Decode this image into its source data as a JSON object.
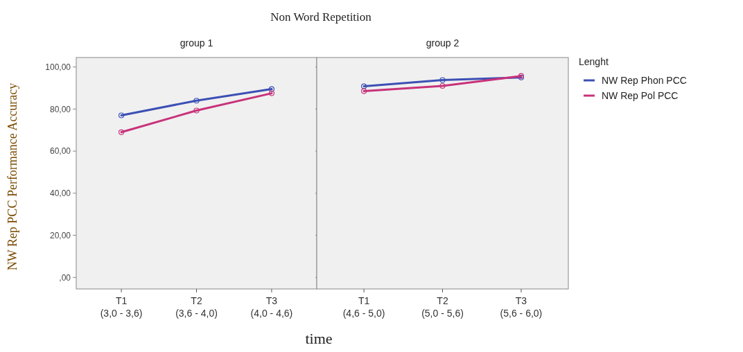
{
  "chart_data": [
    {
      "type": "line",
      "title": "Non Word Repetition",
      "subtitle": "group 1",
      "xlabel": "time",
      "ylabel": "NW Rep PCC Performance Accuracy",
      "categories": [
        "T1\n(3,0 - 3,6)",
        "T2\n(3,6 - 4,0)",
        "T3\n(4,0 - 4,6)"
      ],
      "series": [
        {
          "color": "#3c4fb4",
          "values": [
            77,
            84,
            89.5
          ]
        },
        {
          "color": "#c8327a",
          "values": [
            69,
            79.3,
            87.5
          ]
        }
      ],
      "ylim": [
        -5.5,
        104.5
      ],
      "yticks": [
        {
          "value": 0,
          "label": ",00"
        },
        {
          "value": 20,
          "label": "20,00"
        },
        {
          "value": 40,
          "label": "40,00"
        },
        {
          "value": 60,
          "label": "60,00"
        },
        {
          "value": 80,
          "label": "80,00"
        },
        {
          "value": 100,
          "label": "100,00"
        }
      ],
      "marker": "circle",
      "legend": false
    },
    {
      "type": "line",
      "subtitle": "group 2",
      "categories": [
        "T1\n(4,6 - 5,0)",
        "T2\n(5,0 - 5,6)",
        "T3\n(5,6 - 6,0)"
      ],
      "series": [
        {
          "name": "NW Rep Phon  PCC",
          "color": "#3c4fb4",
          "values": [
            90.8,
            93.8,
            95
          ]
        },
        {
          "name": "NW Rep Pol PCC",
          "color": "#c8327a",
          "values": [
            88.5,
            91,
            95.7
          ]
        }
      ],
      "ylim": [
        -5.5,
        104.5
      ],
      "yticks": [
        {
          "value": 0,
          "label": null
        },
        {
          "value": 20,
          "label": null
        },
        {
          "value": 40,
          "label": null
        },
        {
          "value": 60,
          "label": null
        },
        {
          "value": 80,
          "label": null
        },
        {
          "value": 100,
          "label": null
        }
      ],
      "tick_labels": "x",
      "marker": "circle",
      "legend": "right",
      "legend_title": "Lenght"
    }
  ]
}
